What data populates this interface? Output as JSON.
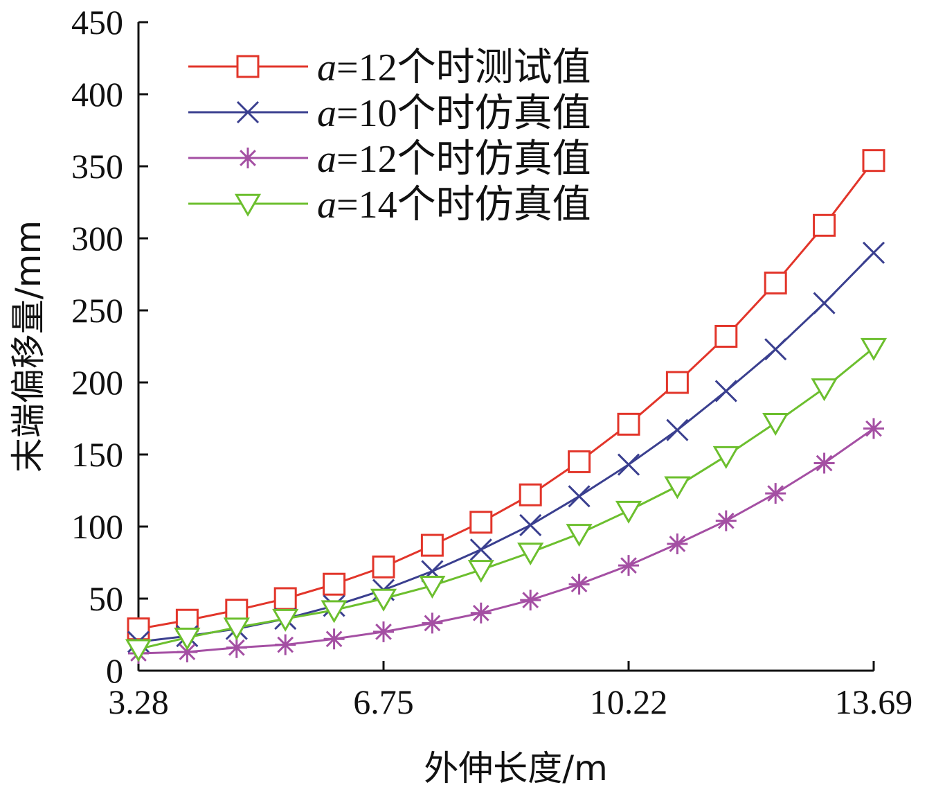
{
  "chart_data": {
    "type": "line",
    "title": "",
    "xlabel": "外伸长度/m",
    "ylabel": "末端偏移量/mm",
    "xlim": [
      3.28,
      13.69
    ],
    "ylim": [
      0,
      450
    ],
    "xticks": [
      3.28,
      6.75,
      10.22,
      13.69
    ],
    "xtick_labels": [
      "3.28",
      "6.75",
      "10.22",
      "13.69"
    ],
    "yticks": [
      0,
      50,
      100,
      150,
      200,
      250,
      300,
      350,
      400,
      450
    ],
    "ytick_labels": [
      "0",
      "50",
      "100",
      "150",
      "200",
      "250",
      "300",
      "350",
      "400",
      "450"
    ],
    "grid": false,
    "legend_position": "top-left",
    "x": [
      3.28,
      3.97,
      4.67,
      5.36,
      6.05,
      6.75,
      7.44,
      8.13,
      8.83,
      9.52,
      10.22,
      10.91,
      11.6,
      12.3,
      12.99,
      13.69
    ],
    "series": [
      {
        "name_prefix": "a",
        "name_suffix": "=12个时测试值",
        "color": "#e2352a",
        "marker": "square",
        "values": [
          29,
          35,
          42,
          50,
          60,
          72,
          87,
          103,
          122,
          145,
          171,
          200,
          232,
          269,
          309,
          354
        ]
      },
      {
        "name_prefix": "a",
        "name_suffix": "=10个时仿真值",
        "color": "#3a3f8f",
        "marker": "x",
        "values": [
          20,
          24,
          29,
          36,
          45,
          56,
          69,
          84,
          101,
          121,
          143,
          167,
          194,
          223,
          255,
          290
        ]
      },
      {
        "name_prefix": "a",
        "name_suffix": "=12个时仿真值",
        "color": "#a44fa3",
        "marker": "asterisk",
        "values": [
          12,
          13,
          16,
          18,
          22,
          27,
          33,
          40,
          49,
          60,
          73,
          88,
          104,
          123,
          144,
          168
        ]
      },
      {
        "name_prefix": "a",
        "name_suffix": "=14个时仿真值",
        "color": "#6cbf2e",
        "marker": "triangle-down",
        "values": [
          15,
          23,
          30,
          36,
          42,
          50,
          59,
          70,
          82,
          95,
          111,
          128,
          149,
          172,
          196,
          224
        ]
      }
    ]
  }
}
